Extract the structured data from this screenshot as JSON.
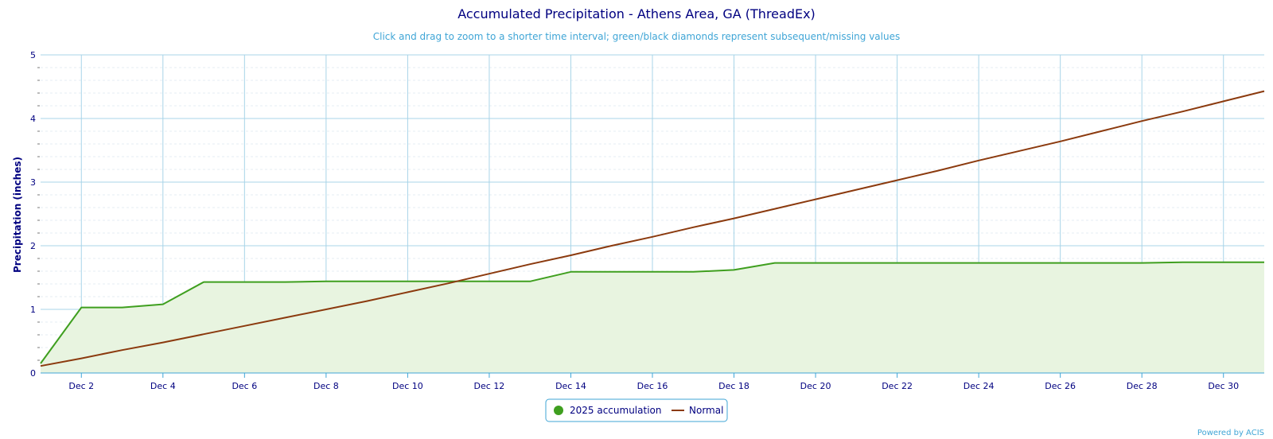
{
  "chart_data": {
    "type": "line",
    "title": "Accumulated Precipitation - Athens Area, GA (ThreadEx)",
    "subtitle": "Click and drag to zoom to a shorter time interval; green/black diamonds represent subsequent/missing values",
    "ylabel": "Precipitation (inches)",
    "xlabel": "",
    "ylim": [
      0,
      5
    ],
    "xlim": [
      1,
      31
    ],
    "y_ticks": [
      0,
      1,
      2,
      3,
      4,
      5
    ],
    "x_ticks": [
      2,
      4,
      6,
      8,
      10,
      12,
      14,
      16,
      18,
      20,
      22,
      24,
      26,
      28,
      30
    ],
    "x_tick_labels": [
      "Dec 2",
      "Dec 4",
      "Dec 6",
      "Dec 8",
      "Dec 10",
      "Dec 12",
      "Dec 14",
      "Dec 16",
      "Dec 18",
      "Dec 20",
      "Dec 22",
      "Dec 24",
      "Dec 26",
      "Dec 28",
      "Dec 30"
    ],
    "grid": true,
    "legend_position": "bottom-center",
    "series": [
      {
        "name": "2025 accumulation",
        "style": "area",
        "color": "#3f9f1f",
        "fill": "#e8f4e0",
        "x": [
          1,
          2,
          3,
          4,
          5,
          6,
          7,
          8,
          9,
          10,
          11,
          12,
          13,
          14,
          15,
          16,
          17,
          18,
          19,
          20,
          21,
          22,
          23,
          24,
          25,
          26,
          27,
          28,
          29,
          30,
          31
        ],
        "values": [
          0.15,
          1.03,
          1.03,
          1.08,
          1.43,
          1.43,
          1.43,
          1.44,
          1.44,
          1.44,
          1.44,
          1.44,
          1.44,
          1.59,
          1.59,
          1.59,
          1.59,
          1.62,
          1.73,
          1.73,
          1.73,
          1.73,
          1.73,
          1.73,
          1.73,
          1.73,
          1.73,
          1.73,
          1.74,
          1.74,
          1.74
        ]
      },
      {
        "name": "Normal",
        "style": "line",
        "color": "#8b3a0e",
        "x": [
          1,
          2,
          3,
          4,
          5,
          6,
          7,
          8,
          9,
          10,
          11,
          12,
          13,
          14,
          15,
          16,
          17,
          18,
          19,
          20,
          21,
          22,
          23,
          24,
          25,
          26,
          27,
          28,
          29,
          30,
          31
        ],
        "values": [
          0.11,
          0.23,
          0.36,
          0.48,
          0.61,
          0.74,
          0.87,
          1.0,
          1.13,
          1.27,
          1.41,
          1.56,
          1.71,
          1.85,
          2.0,
          2.14,
          2.29,
          2.43,
          2.58,
          2.73,
          2.88,
          3.03,
          3.18,
          3.34,
          3.49,
          3.64,
          3.8,
          3.96,
          4.11,
          4.27,
          4.43
        ]
      }
    ]
  },
  "credits": "Powered by ACIS",
  "colors": {
    "grid": "#a8d4e8",
    "minor_grid": "#e6eef3",
    "axis": "#3fa5d6",
    "legend_border": "#3fa5d6"
  }
}
